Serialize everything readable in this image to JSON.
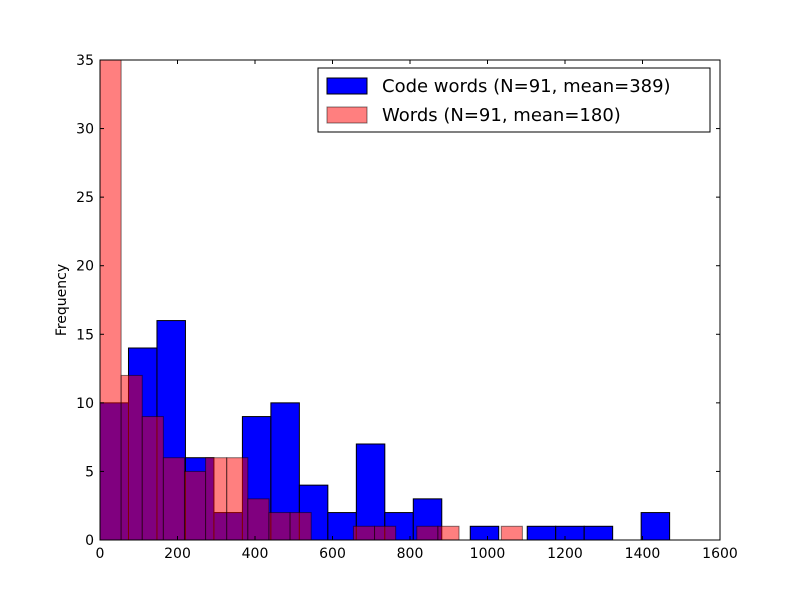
{
  "chart_data": {
    "type": "bar",
    "title": "",
    "xlabel": "",
    "ylabel": "Frequency",
    "xlim": [
      0,
      1600
    ],
    "ylim": [
      0,
      35
    ],
    "xticks": [
      0,
      200,
      400,
      600,
      800,
      1000,
      1200,
      1400,
      1600
    ],
    "yticks": [
      0,
      5,
      10,
      15,
      20,
      25,
      30,
      35
    ],
    "legend_position": "top-right",
    "grid": false,
    "series": [
      {
        "name": "Code words (N=91, mean=389)",
        "color": "#0000ff",
        "alpha": 1.0,
        "bin_edges": [
          0,
          73.5,
          147,
          220.5,
          294,
          367.5,
          441,
          514.5,
          588,
          661.5,
          735,
          808.5,
          882,
          955.5,
          1029,
          1102.5,
          1176,
          1249.5,
          1323,
          1396.5,
          1470
        ],
        "counts": [
          10,
          14,
          16,
          6,
          2,
          9,
          10,
          4,
          2,
          7,
          2,
          3,
          0,
          1,
          0,
          1,
          1,
          1,
          0,
          2
        ]
      },
      {
        "name": "Words (N=91, mean=180)",
        "color": "#ff0000",
        "alpha": 0.5,
        "bin_edges": [
          0,
          54.5,
          109,
          163.5,
          218,
          272.5,
          327,
          381.5,
          436,
          490.5,
          545,
          599.5,
          654,
          708.5,
          763,
          817.5,
          872,
          926.5,
          981,
          1035.5,
          1090
        ],
        "counts": [
          35,
          12,
          9,
          6,
          5,
          6,
          6,
          3,
          2,
          2,
          0,
          0,
          1,
          1,
          0,
          1,
          1,
          0,
          0,
          1
        ]
      }
    ]
  }
}
